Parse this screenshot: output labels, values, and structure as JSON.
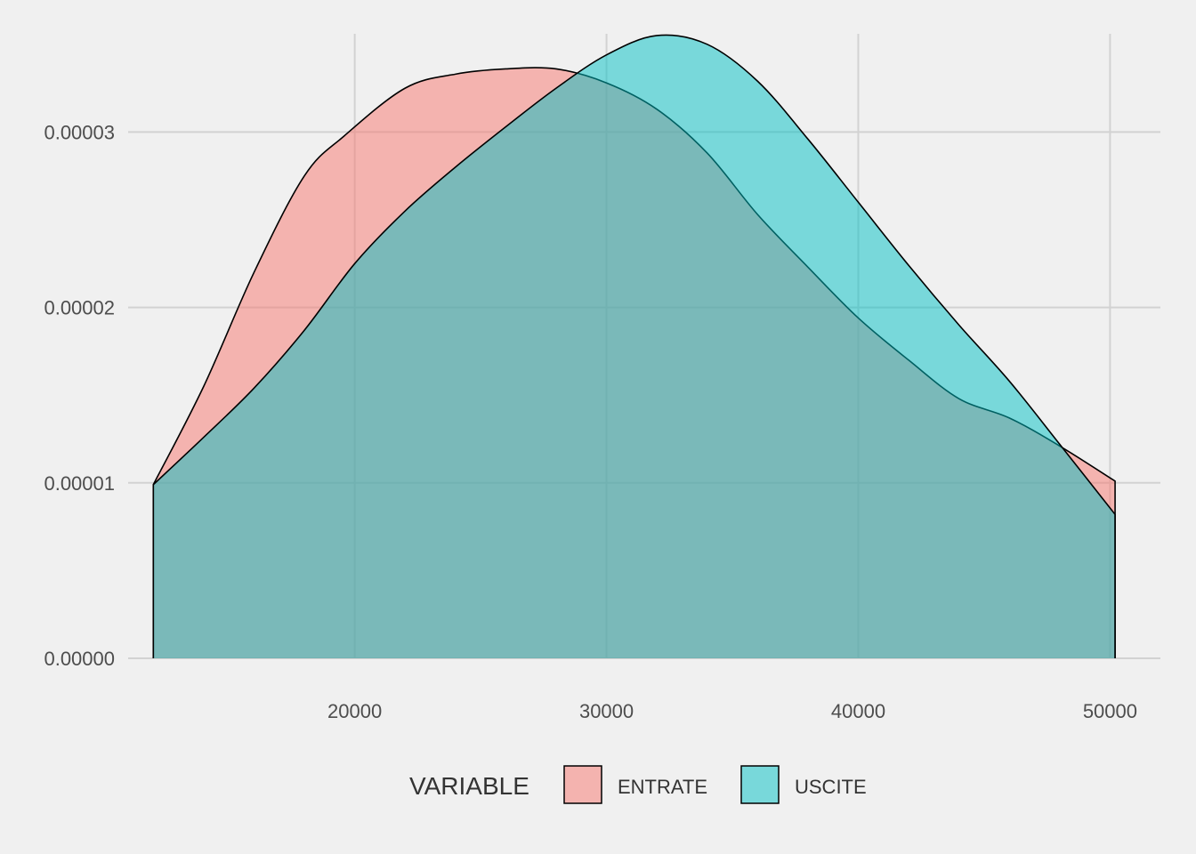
{
  "chart_data": {
    "type": "area",
    "subtype": "density",
    "xlim": [
      11000,
      52000
    ],
    "ylim": [
      0,
      3.56e-05
    ],
    "x_ticks": [
      20000,
      30000,
      40000,
      50000
    ],
    "x_tick_labels": [
      "20000",
      "30000",
      "40000",
      "50000"
    ],
    "y_ticks": [
      0,
      1e-05,
      2e-05,
      3e-05
    ],
    "y_tick_labels": [
      "0.00000",
      "0.00001",
      "0.00002",
      "0.00003"
    ],
    "grid": true,
    "legend": {
      "title": "VARIABLE",
      "position": "bottom"
    },
    "series": [
      {
        "name": "ENTRATE",
        "color": "#f8766d",
        "opacity": 0.5,
        "points": [
          [
            12000,
            9.9e-06
          ],
          [
            14000,
            1.55e-05
          ],
          [
            16000,
            2.2e-05
          ],
          [
            18000,
            2.75e-05
          ],
          [
            19600,
            2.98e-05
          ],
          [
            22000,
            3.25e-05
          ],
          [
            24000,
            3.33e-05
          ],
          [
            26000,
            3.36e-05
          ],
          [
            28000,
            3.36e-05
          ],
          [
            30000,
            3.28e-05
          ],
          [
            32000,
            3.13e-05
          ],
          [
            34000,
            2.88e-05
          ],
          [
            36000,
            2.53e-05
          ],
          [
            38000,
            2.23e-05
          ],
          [
            40000,
            1.94e-05
          ],
          [
            42000,
            1.7e-05
          ],
          [
            44000,
            1.48e-05
          ],
          [
            46000,
            1.37e-05
          ],
          [
            48000,
            1.21e-05
          ],
          [
            50200,
            1.01e-05
          ]
        ]
      },
      {
        "name": "USCITE",
        "color": "#00bfc4",
        "opacity": 0.5,
        "points": [
          [
            12000,
            9.9e-06
          ],
          [
            14000,
            1.26e-05
          ],
          [
            16000,
            1.54e-05
          ],
          [
            18000,
            1.87e-05
          ],
          [
            20000,
            2.25e-05
          ],
          [
            22000,
            2.55e-05
          ],
          [
            24000,
            2.8e-05
          ],
          [
            26000,
            3.03e-05
          ],
          [
            28000,
            3.25e-05
          ],
          [
            30000,
            3.44e-05
          ],
          [
            32000,
            3.55e-05
          ],
          [
            34000,
            3.5e-05
          ],
          [
            36000,
            3.29e-05
          ],
          [
            38000,
            2.96e-05
          ],
          [
            40000,
            2.6e-05
          ],
          [
            42000,
            2.24e-05
          ],
          [
            44000,
            1.9e-05
          ],
          [
            46000,
            1.58e-05
          ],
          [
            48000,
            1.22e-05
          ],
          [
            50200,
            8.2e-06
          ]
        ]
      }
    ]
  }
}
